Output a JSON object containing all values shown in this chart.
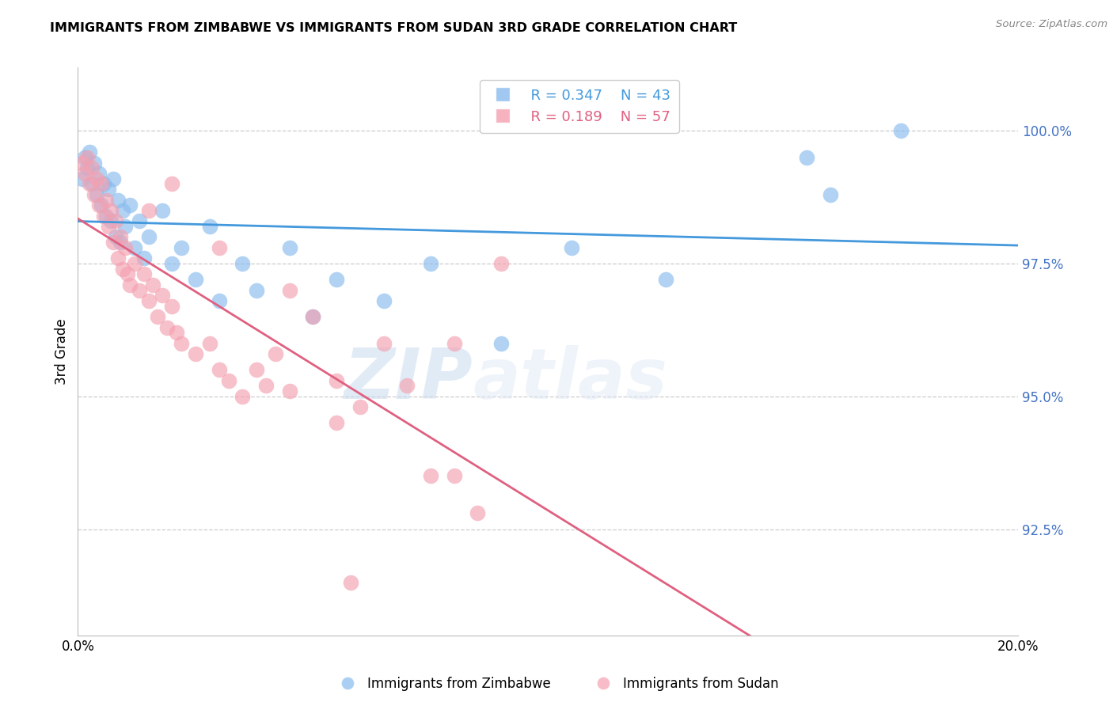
{
  "title": "IMMIGRANTS FROM ZIMBABWE VS IMMIGRANTS FROM SUDAN 3RD GRADE CORRELATION CHART",
  "source": "Source: ZipAtlas.com",
  "ylabel": "3rd Grade",
  "yticks": [
    92.5,
    95.0,
    97.5,
    100.0
  ],
  "ytick_labels": [
    "92.5%",
    "95.0%",
    "97.5%",
    "100.0%"
  ],
  "xmin": 0.0,
  "xmax": 20.0,
  "ymin": 90.5,
  "ymax": 101.2,
  "zimbabwe_color": "#88bbee",
  "sudan_color": "#f4a0b0",
  "zimbabwe_line_color": "#4499dd",
  "sudan_line_color": "#e06080",
  "legend_r_zimbabwe": "R = 0.347",
  "legend_n_zimbabwe": "N = 43",
  "legend_r_sudan": "R = 0.189",
  "legend_n_sudan": "N = 57",
  "watermark_zip": "ZIP",
  "watermark_atlas": "atlas",
  "background_color": "#ffffff",
  "grid_color": "#cccccc",
  "right_axis_color": "#4472c4",
  "zimbabwe_x": [
    0.1,
    0.15,
    0.2,
    0.25,
    0.3,
    0.35,
    0.4,
    0.45,
    0.5,
    0.55,
    0.6,
    0.65,
    0.7,
    0.75,
    0.8,
    0.85,
    0.9,
    0.95,
    1.0,
    1.1,
    1.2,
    1.3,
    1.4,
    1.5,
    1.8,
    2.0,
    2.2,
    2.5,
    2.8,
    3.0,
    3.5,
    3.8,
    4.5,
    5.0,
    5.5,
    6.5,
    7.5,
    9.0,
    10.5,
    12.5,
    15.5,
    16.0,
    17.5
  ],
  "zimbabwe_y": [
    99.1,
    99.5,
    99.3,
    99.6,
    99.0,
    99.4,
    98.8,
    99.2,
    98.6,
    99.0,
    98.4,
    98.9,
    98.3,
    99.1,
    98.0,
    98.7,
    97.9,
    98.5,
    98.2,
    98.6,
    97.8,
    98.3,
    97.6,
    98.0,
    98.5,
    97.5,
    97.8,
    97.2,
    98.2,
    96.8,
    97.5,
    97.0,
    97.8,
    96.5,
    97.2,
    96.8,
    97.5,
    96.0,
    97.8,
    97.2,
    99.5,
    98.8,
    100.0
  ],
  "sudan_x": [
    0.1,
    0.15,
    0.2,
    0.25,
    0.3,
    0.35,
    0.4,
    0.45,
    0.5,
    0.55,
    0.6,
    0.65,
    0.7,
    0.75,
    0.8,
    0.85,
    0.9,
    0.95,
    1.0,
    1.05,
    1.1,
    1.2,
    1.3,
    1.4,
    1.5,
    1.6,
    1.7,
    1.8,
    1.9,
    2.0,
    2.1,
    2.2,
    2.5,
    2.8,
    3.0,
    3.2,
    3.5,
    3.8,
    4.0,
    4.2,
    4.5,
    5.0,
    5.5,
    6.0,
    6.5,
    7.0,
    7.5,
    8.0,
    8.5,
    9.0,
    1.5,
    2.0,
    3.0,
    4.5,
    5.5,
    8.0,
    5.8
  ],
  "sudan_y": [
    99.4,
    99.2,
    99.5,
    99.0,
    99.3,
    98.8,
    99.1,
    98.6,
    99.0,
    98.4,
    98.7,
    98.2,
    98.5,
    97.9,
    98.3,
    97.6,
    98.0,
    97.4,
    97.8,
    97.3,
    97.1,
    97.5,
    97.0,
    97.3,
    96.8,
    97.1,
    96.5,
    96.9,
    96.3,
    96.7,
    96.2,
    96.0,
    95.8,
    96.0,
    95.5,
    95.3,
    95.0,
    95.5,
    95.2,
    95.8,
    95.1,
    96.5,
    95.3,
    94.8,
    96.0,
    95.2,
    93.5,
    96.0,
    92.8,
    97.5,
    98.5,
    99.0,
    97.8,
    97.0,
    94.5,
    93.5,
    91.5
  ]
}
